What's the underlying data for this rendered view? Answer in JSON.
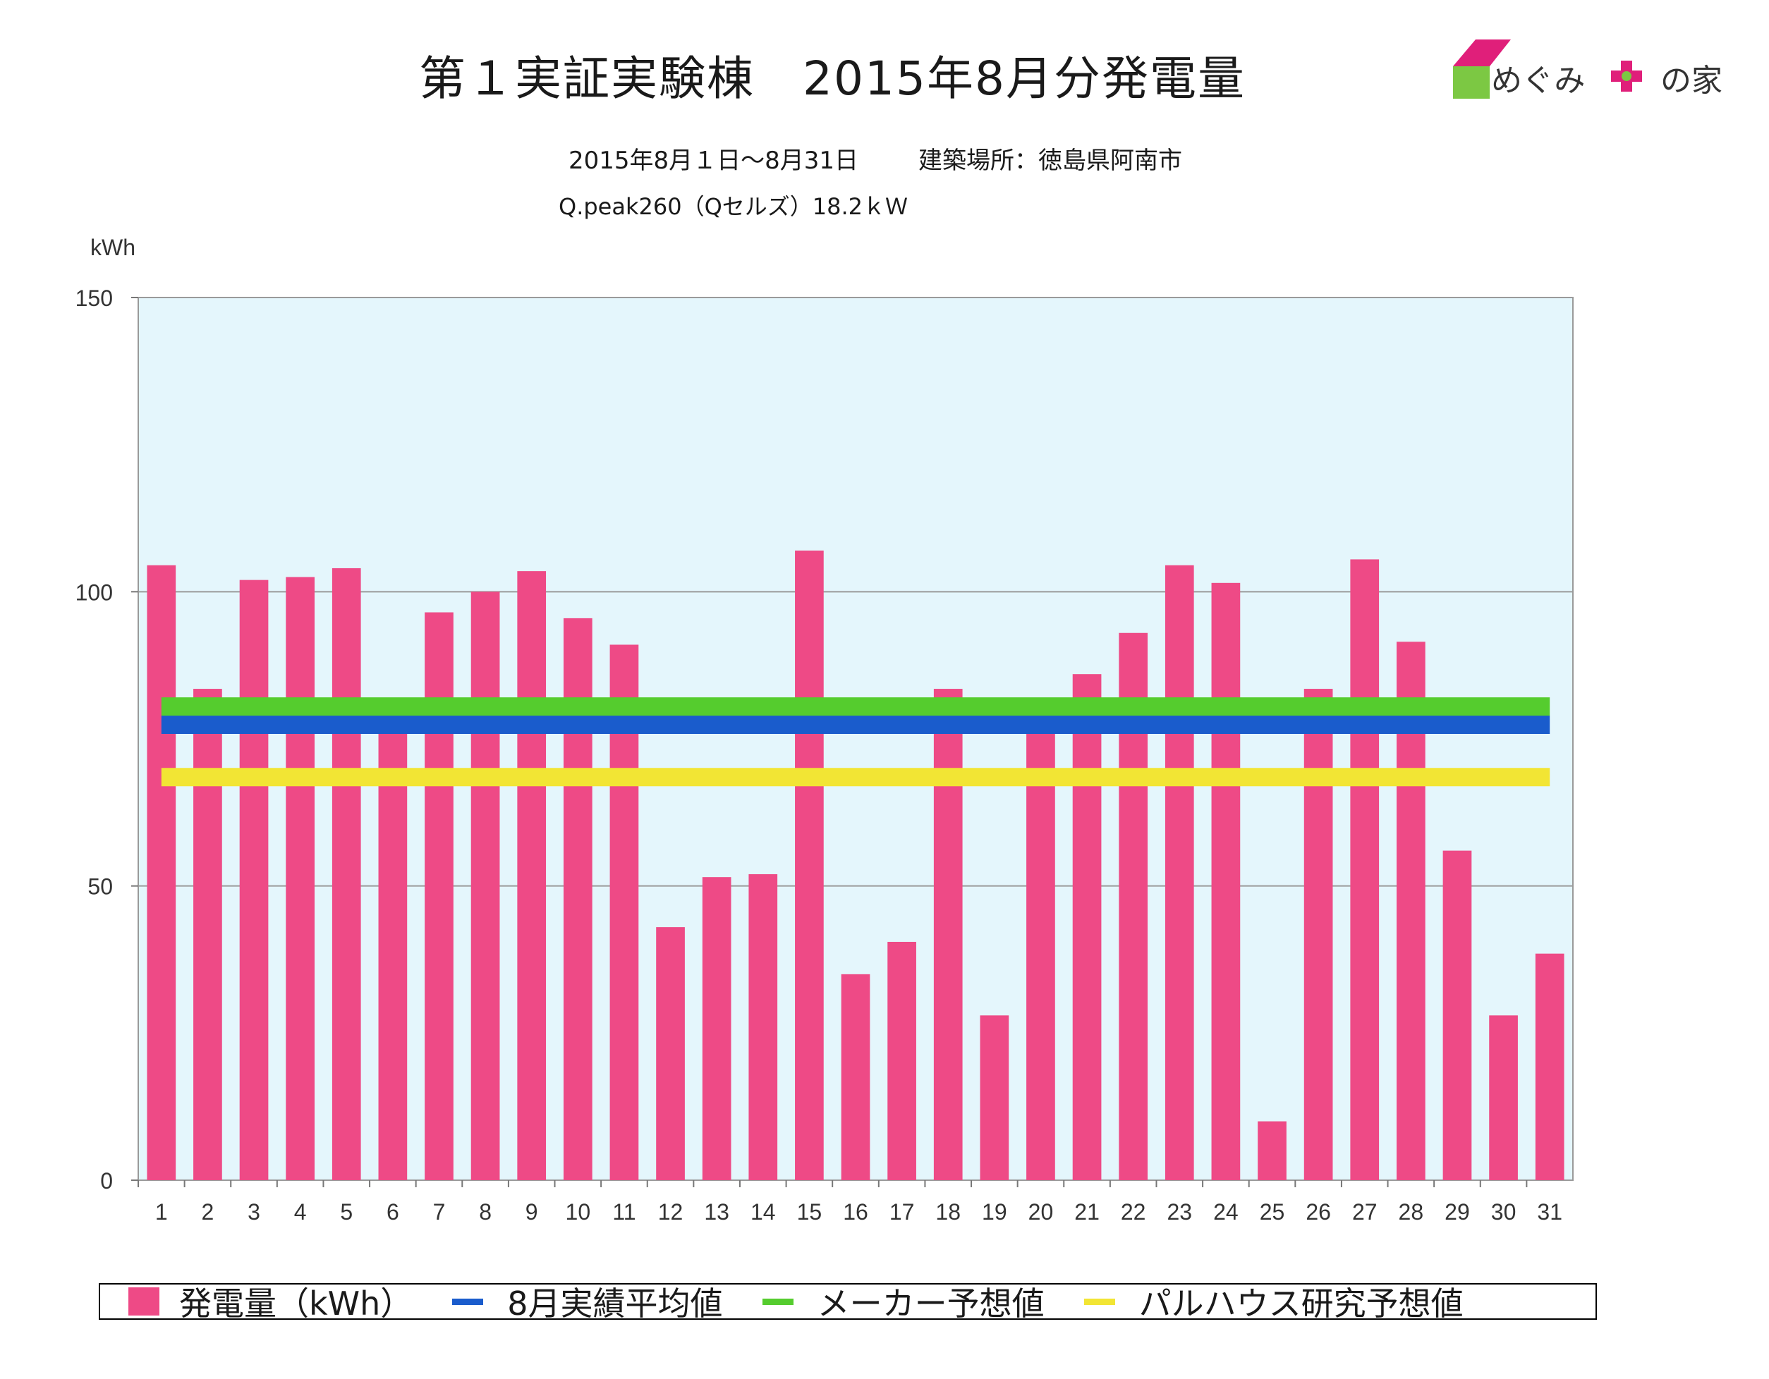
{
  "header": {
    "title": "第１実証実験棟　2015年8月分発電量",
    "period": "2015年8月１日～8月31日",
    "location": "建築場所：徳島県阿南市",
    "spec": "Q.peak260（Qセルズ）18.2ｋＷ"
  },
  "logo": {
    "text_left": "めぐみ",
    "text_right": "の家",
    "colors": {
      "pink": "#e01f7a",
      "green": "#7cc843"
    }
  },
  "legend": {
    "items": [
      {
        "label": "発電量（kWh）",
        "color": "#ee4a86",
        "kind": "box"
      },
      {
        "label": "8月実績平均値",
        "color": "#1a5ccc",
        "kind": "line"
      },
      {
        "label": "メーカー予想値",
        "color": "#55cc2e",
        "kind": "line"
      },
      {
        "label": "パルハウス研究予想値",
        "color": "#f2e534",
        "kind": "line"
      }
    ]
  },
  "chart_data": {
    "type": "bar",
    "ylabel": "kWh",
    "ylim": [
      0,
      150
    ],
    "yticks": [
      0,
      50,
      100,
      150
    ],
    "grid": true,
    "categories": [
      "1",
      "2",
      "3",
      "4",
      "5",
      "6",
      "7",
      "8",
      "9",
      "10",
      "11",
      "12",
      "13",
      "14",
      "15",
      "16",
      "17",
      "18",
      "19",
      "20",
      "21",
      "22",
      "23",
      "24",
      "25",
      "26",
      "27",
      "28",
      "29",
      "30",
      "31"
    ],
    "series": [
      {
        "name": "発電量（kWh）",
        "type": "bar",
        "color": "#ee4a86",
        "values": [
          104.5,
          83.5,
          102,
          102.5,
          104,
          76,
          96.5,
          100,
          103.5,
          95.5,
          91,
          43,
          51.5,
          52,
          107,
          35,
          40.5,
          83.5,
          28,
          79,
          86,
          93,
          104.5,
          101.5,
          10,
          83.5,
          105.5,
          91.5,
          56,
          28,
          38.5
        ]
      },
      {
        "name": "8月実績平均値",
        "type": "hline",
        "color": "#1a5ccc",
        "value": 77.4
      },
      {
        "name": "メーカー予想値",
        "type": "hline",
        "color": "#55cc2e",
        "value": 80.5
      },
      {
        "name": "パルハウス研究予想値",
        "type": "hline",
        "color": "#f2e534",
        "value": 68.5
      }
    ],
    "plot_background": "#e4f6fc"
  }
}
